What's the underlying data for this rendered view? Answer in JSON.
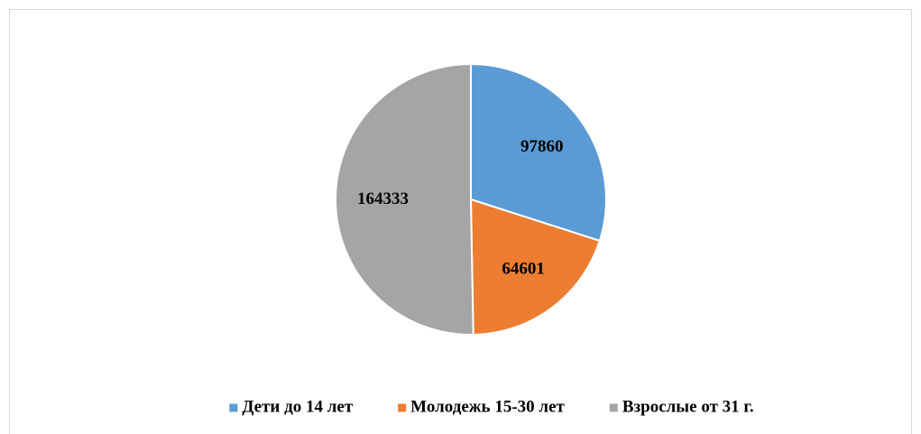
{
  "chart_data": {
    "type": "pie",
    "categories": [
      "Дети до 14 лет",
      "Молодежь 15-30 лет",
      "Взрослые от 31 г."
    ],
    "values": [
      97860,
      64601,
      164333
    ],
    "colors": [
      "#5b9bd5",
      "#ed7d31",
      "#a5a5a5"
    ],
    "legend": "bottom"
  }
}
